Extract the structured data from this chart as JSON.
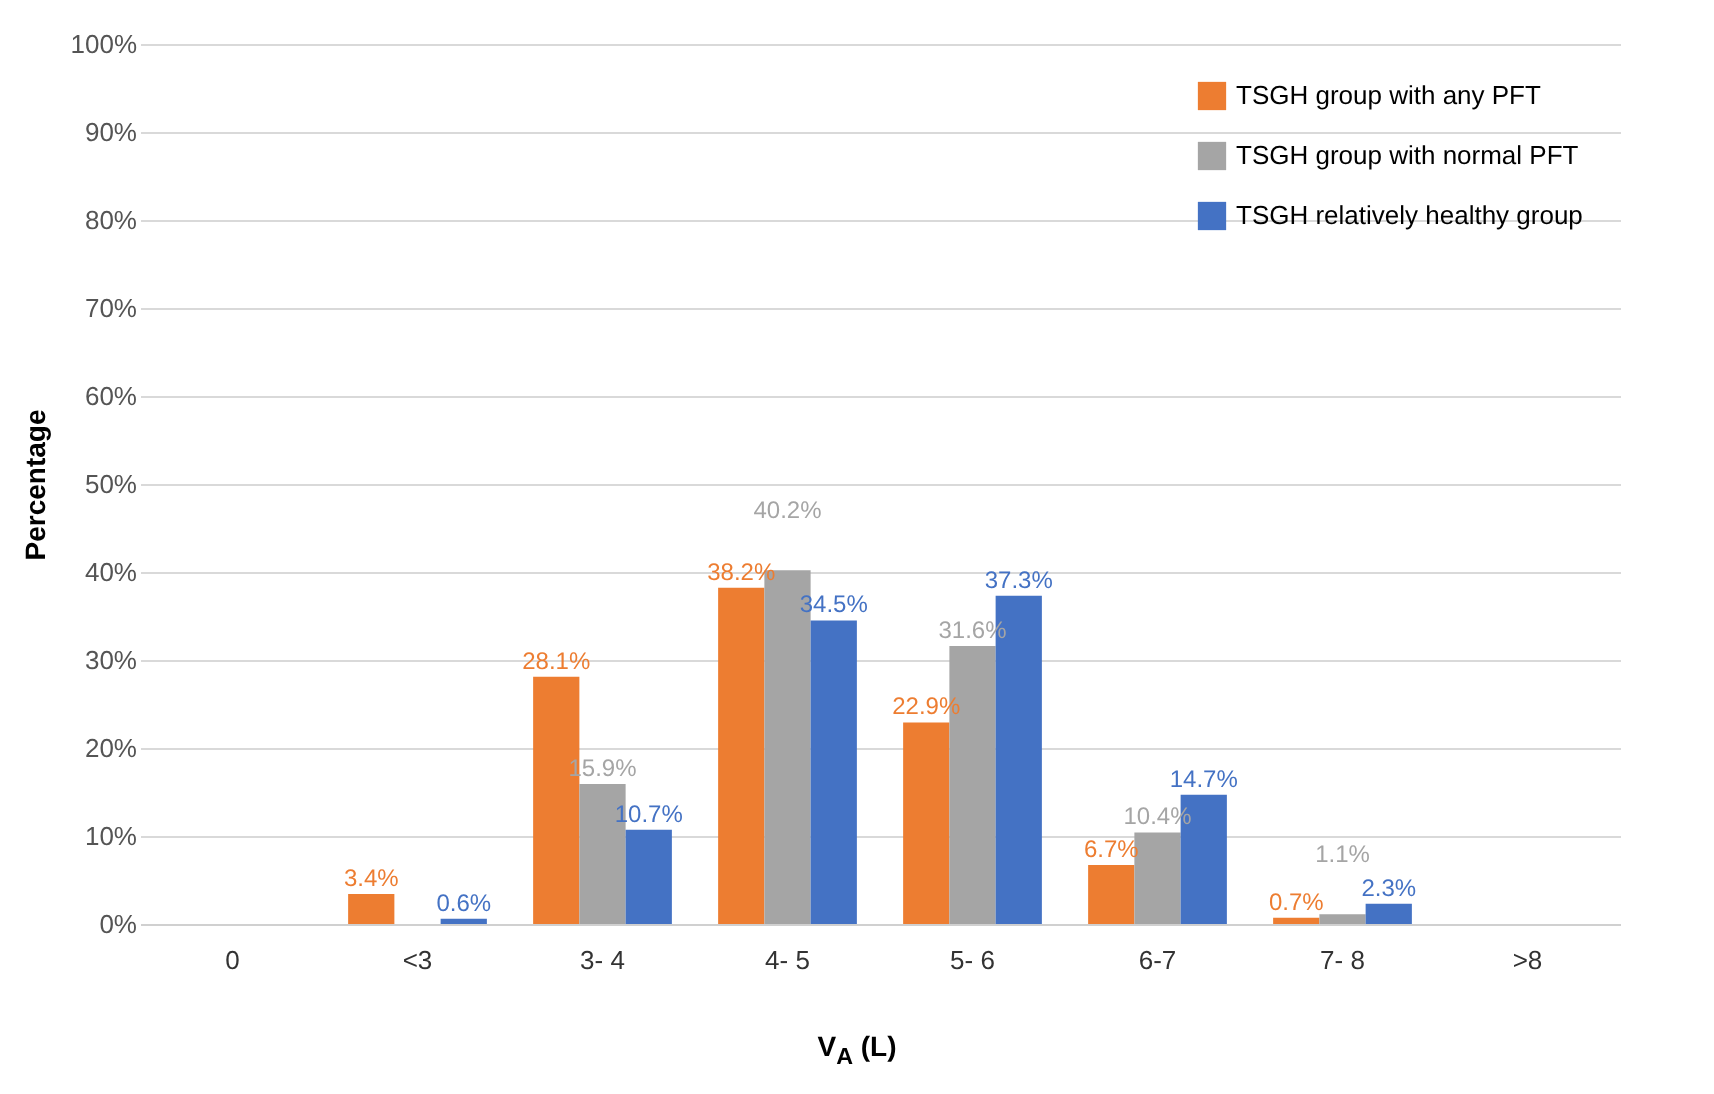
{
  "chart_data": {
    "type": "bar",
    "xlabel": "V$_{A}$ (L)",
    "ylabel": "Percentage",
    "categories": [
      "0",
      "<3",
      "3- 4",
      "4- 5",
      "5- 6",
      "6-7",
      "7- 8",
      ">8"
    ],
    "series": [
      {
        "name": "TSGH group with any PFT",
        "color": "#ed7d31",
        "values": [
          null,
          3.4,
          28.1,
          38.2,
          22.9,
          6.7,
          0.7,
          null
        ],
        "value_labels": [
          null,
          "3.4%",
          "28.1%",
          "38.2%",
          "22.9%",
          "6.7%",
          "0.7%",
          null
        ]
      },
      {
        "name": "TSGH group with normal PFT",
        "color": "#a5a5a5",
        "values": [
          null,
          null,
          15.9,
          40.2,
          31.6,
          10.4,
          1.1,
          null
        ],
        "value_labels": [
          null,
          null,
          "15.9%",
          "40.2%",
          "31.6%",
          "10.4%",
          "1.1%",
          null
        ]
      },
      {
        "name": "TSGH relatively healthy group",
        "color": "#4472c4",
        "values": [
          null,
          0.6,
          10.7,
          34.5,
          37.3,
          14.7,
          2.3,
          null
        ],
        "value_labels": [
          null,
          "0.6%",
          "10.7%",
          "34.5%",
          "37.3%",
          "14.7%",
          "2.3%",
          null
        ]
      }
    ],
    "ylim": [
      0,
      100
    ],
    "yticks": [
      {
        "value": 0,
        "label": "0%"
      },
      {
        "value": 10,
        "label": "10%"
      },
      {
        "value": 20,
        "label": "20%"
      },
      {
        "value": 30,
        "label": "30%"
      },
      {
        "value": 40,
        "label": "40%"
      },
      {
        "value": 50,
        "label": "50%"
      },
      {
        "value": 60,
        "label": "60%"
      },
      {
        "value": 70,
        "label": "70%"
      },
      {
        "value": 80,
        "label": "80%"
      },
      {
        "value": 90,
        "label": "90%"
      },
      {
        "value": 100,
        "label": "100%"
      }
    ],
    "grid": "y",
    "legend": "top right"
  }
}
